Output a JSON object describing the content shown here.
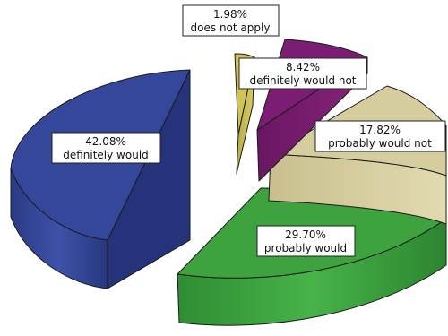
{
  "chart_data": {
    "type": "pie",
    "style": "3d-exploded",
    "values": [
      1.98,
      8.42,
      17.82,
      29.7,
      42.08
    ],
    "slices": [
      {
        "label": "does not apply",
        "value_text": "1.98%",
        "value": 1.98,
        "color": "#cfc35a"
      },
      {
        "label": "definitely would not",
        "value_text": "8.42%",
        "value": 8.42,
        "color": "#7a1d73"
      },
      {
        "label": "probably would not",
        "value_text": "17.82%",
        "value": 17.82,
        "color": "#d6cd9e"
      },
      {
        "label": "probably would",
        "value_text": "29.70%",
        "value": 29.7,
        "color": "#3ea23f"
      },
      {
        "label": "definitely would",
        "value_text": "42.08%",
        "value": 42.08,
        "color": "#34479a"
      }
    ]
  }
}
